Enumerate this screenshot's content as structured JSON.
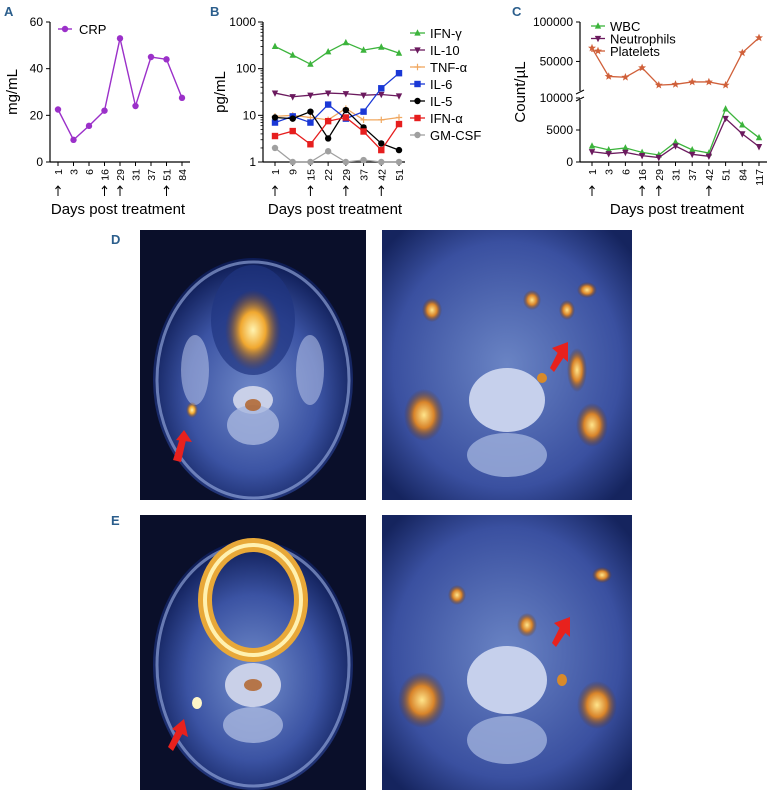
{
  "panels": {
    "a": "A",
    "b": "B",
    "c": "C",
    "d": "D",
    "e": "E"
  },
  "chart_data": [
    {
      "type": "line",
      "panel": "A",
      "xlabel": "Days post treatment",
      "ylabel": "mg/mL",
      "categories": [
        "1",
        "3",
        "6",
        "16",
        "29",
        "31",
        "37",
        "51",
        "84"
      ],
      "arrow_days": [
        "1",
        "16",
        "29",
        "51"
      ],
      "yticks": [
        0,
        20,
        40,
        60
      ],
      "ylim": [
        0,
        60
      ],
      "legend_position": "top-left",
      "series": [
        {
          "name": "CRP",
          "color": "#9b30c9",
          "marker": "circle",
          "values": [
            22.5,
            9.5,
            15.5,
            22,
            53,
            24,
            45,
            44,
            27.5
          ]
        }
      ]
    },
    {
      "type": "line",
      "panel": "B",
      "xlabel": "Days post treatment",
      "ylabel": "pg/mL",
      "scale": "log",
      "categories": [
        "1",
        "9",
        "15",
        "22",
        "29",
        "37",
        "42",
        "51"
      ],
      "arrow_days": [
        "1",
        "15",
        "29",
        "42"
      ],
      "yticks": [
        1,
        10,
        100,
        1000
      ],
      "yticklabels": [
        "1",
        "10",
        "100",
        "1000"
      ],
      "ylim": [
        1,
        1000
      ],
      "legend_position": "right",
      "series": [
        {
          "name": "IFN-γ",
          "color": "#3cb43c",
          "marker": "triangle-up",
          "values": [
            300,
            195,
            125,
            230,
            360,
            250,
            290,
            215
          ]
        },
        {
          "name": "IL-10",
          "color": "#6b1a5e",
          "marker": "triangle-down",
          "values": [
            30,
            25,
            27,
            30,
            29,
            27,
            28,
            26
          ]
        },
        {
          "name": "TNF-α",
          "color": "#f0a860",
          "marker": "plus",
          "values": [
            9.5,
            10,
            9,
            8,
            14,
            8,
            8,
            9
          ]
        },
        {
          "name": "IL-6",
          "color": "#1a38d6",
          "marker": "square",
          "values": [
            7,
            9.5,
            7,
            17,
            8.5,
            12,
            38,
            80
          ]
        },
        {
          "name": "IL-5",
          "color": "#000000",
          "marker": "circle",
          "values": [
            9,
            8.5,
            12,
            3.2,
            13,
            5.5,
            2.5,
            1.8
          ]
        },
        {
          "name": "IFN-α",
          "color": "#e61e1e",
          "marker": "square",
          "values": [
            3.6,
            4.6,
            2.4,
            7.5,
            9,
            4.5,
            1.8,
            6.5
          ]
        },
        {
          "name": "GM-CSF",
          "color": "#a0a0a0",
          "marker": "circle",
          "values": [
            2,
            1,
            1,
            1.7,
            1,
            1.1,
            1,
            1
          ]
        }
      ]
    },
    {
      "type": "line",
      "panel": "C",
      "xlabel": "Days post treatment",
      "ylabel": "Count/µL",
      "categories": [
        "1",
        "3",
        "6",
        "16",
        "29",
        "31",
        "37",
        "42",
        "51",
        "84",
        "117"
      ],
      "arrow_days": [
        "1",
        "16",
        "29",
        "42"
      ],
      "axis_break": true,
      "lower_axis": {
        "yticks": [
          0,
          5000,
          10000
        ],
        "ylim": [
          0,
          10000
        ]
      },
      "upper_axis": {
        "yticks": [
          50000,
          100000
        ],
        "ylim": [
          10000,
          100000
        ]
      },
      "legend_position": "top",
      "series": [
        {
          "name": "WBC",
          "color": "#3cb43c",
          "marker": "triangle-up",
          "values": [
            2500,
            1900,
            2200,
            1500,
            1100,
            3100,
            1900,
            1400,
            8300,
            5800,
            3800
          ]
        },
        {
          "name": "Neutrophils",
          "color": "#6b1a5e",
          "marker": "triangle-down",
          "values": [
            1600,
            1300,
            1500,
            1000,
            700,
            2500,
            1200,
            900,
            6800,
            4400,
            2400
          ]
        },
        {
          "name": "Platelets",
          "color": "#d0603a",
          "marker": "star",
          "values": [
            67000,
            31000,
            30000,
            42000,
            20000,
            21000,
            24000,
            24000,
            20000,
            61000,
            80000
          ]
        }
      ]
    }
  ]
}
